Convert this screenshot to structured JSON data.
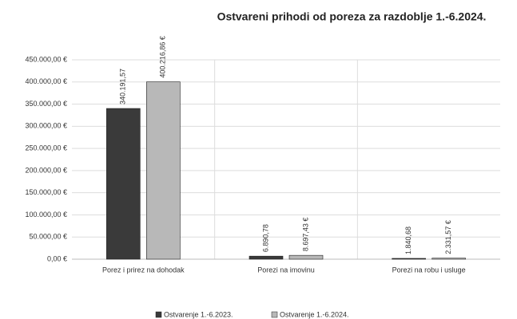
{
  "chart_data": {
    "type": "bar",
    "title": "Ostvareni prihodi od poreza za razdoblje 1.-6.2024.",
    "categories": [
      "Porez i prirez na dohodak",
      "Porezi na imovinu",
      "Porezi na robu i usluge"
    ],
    "series": [
      {
        "name": "Ostvarenje 1.-6.2023.",
        "color": "#3a3a3a",
        "values": [
          340191.57,
          6890.78,
          1840.68
        ],
        "value_labels": [
          "340.191,57",
          "6.890,78",
          "1.840,68"
        ]
      },
      {
        "name": "Ostvarenje 1.-6.2024.",
        "color": "#b8b8b8",
        "values": [
          400216.86,
          8697.43,
          2331.57
        ],
        "value_labels": [
          "400.216,86 €",
          "8.697,43 €",
          "2.331,57 €"
        ]
      }
    ],
    "ylim": [
      0,
      450000
    ],
    "yticks": [
      {
        "value": 0,
        "label": "0,00 €"
      },
      {
        "value": 50000,
        "label": "50.000,00 €"
      },
      {
        "value": 100000,
        "label": "100.000,00 €"
      },
      {
        "value": 150000,
        "label": "150.000,00 €"
      },
      {
        "value": 200000,
        "label": "200.000,00 €"
      },
      {
        "value": 250000,
        "label": "250.000,00 €"
      },
      {
        "value": 300000,
        "label": "300.000,00 €"
      },
      {
        "value": 350000,
        "label": "350.000,00 €"
      },
      {
        "value": 400000,
        "label": "400.000,00 €"
      },
      {
        "value": 450000,
        "label": "450.000,00 €"
      }
    ],
    "grid": true,
    "legend": "bottom"
  }
}
